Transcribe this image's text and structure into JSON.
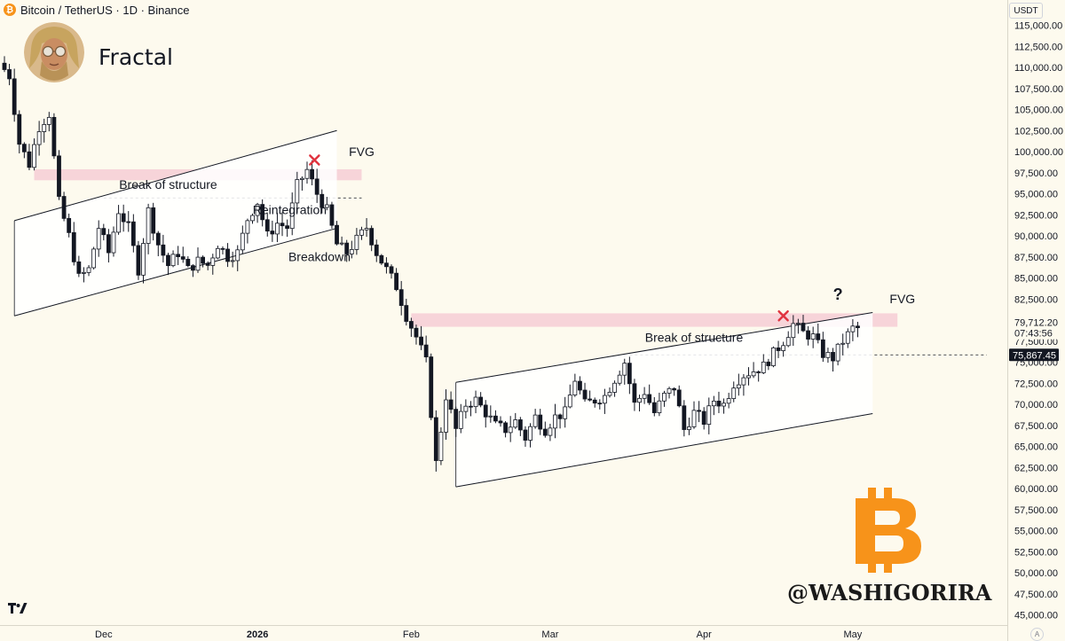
{
  "header": {
    "symbol_title": "Bitcoin / TetherUS · 1D · Binance",
    "coin_glyph": "₿"
  },
  "brand": {
    "title": "Fractal",
    "watermark": "@WASHIGORIRA",
    "logo_color": "#f7931a"
  },
  "toolbar": {
    "currency": "USDT",
    "scale_mode": "A"
  },
  "colors": {
    "background": "#fdfaee",
    "fvg_zone": "#f6cfd6",
    "marker": "#e0343f",
    "price_label_bg": "#131722"
  },
  "chart_data": {
    "type": "candlestick",
    "pair": "BTCUSDT",
    "timeframe": "1D",
    "exchange": "Binance",
    "y_axis": {
      "ylim": [
        44200,
        116400
      ],
      "ticks": [
        45000,
        47500,
        50000,
        52500,
        55000,
        57500,
        60000,
        62500,
        65000,
        67500,
        70000,
        72500,
        75000,
        77500,
        80000,
        82500,
        85000,
        87500,
        90000,
        92500,
        95000,
        97500,
        100000,
        102500,
        105000,
        107500,
        110000,
        112500,
        115000
      ],
      "tick_labels": [
        "45,000.00",
        "47,500.00",
        "50,000.00",
        "52,500.00",
        "55,000.00",
        "57,500.00",
        "60,000.00",
        "62,500.00",
        "65,000.00",
        "67,500.00",
        "70,000.00",
        "72,500.00",
        "75,000.00",
        "77,500.00",
        "80,000.00",
        "82,500.00",
        "85,000.00",
        "87,500.00",
        "90,000.00",
        "92,500.00",
        "95,000.00",
        "97,500.00",
        "100,000.00",
        "102,500.00",
        "105,000.00",
        "107,500.00",
        "110,000.00",
        "112,500.00",
        "115,000.00"
      ]
    },
    "x_axis": {
      "labels": [
        {
          "text": "Dec",
          "day": 20,
          "bold": false
        },
        {
          "text": "2026",
          "day": 51,
          "bold": true
        },
        {
          "text": "Feb",
          "day": 82,
          "bold": false
        },
        {
          "text": "Mar",
          "day": 110,
          "bold": false
        },
        {
          "text": "Apr",
          "day": 141,
          "bold": false
        },
        {
          "text": "May",
          "day": 171,
          "bold": false
        }
      ]
    },
    "price_labels": {
      "last_price": "79,712.20",
      "countdown": "07:43:56",
      "level": 75867.45,
      "level_label": "75,867.45"
    },
    "path_prices": [
      [
        0,
        110500
      ],
      [
        2,
        109000
      ],
      [
        4,
        101000
      ],
      [
        6,
        98500
      ],
      [
        8,
        103000
      ],
      [
        10,
        104500
      ],
      [
        12,
        94000
      ],
      [
        14,
        90000
      ],
      [
        16,
        85000
      ],
      [
        18,
        86000
      ],
      [
        20,
        91000
      ],
      [
        22,
        88000
      ],
      [
        24,
        93000
      ],
      [
        26,
        91000
      ],
      [
        28,
        86000
      ],
      [
        30,
        93000
      ],
      [
        32,
        89000
      ],
      [
        34,
        86500
      ],
      [
        36,
        88000
      ],
      [
        38,
        86000
      ],
      [
        40,
        87000
      ],
      [
        42,
        86500
      ],
      [
        44,
        89000
      ],
      [
        46,
        87500
      ],
      [
        48,
        88000
      ],
      [
        50,
        92000
      ],
      [
        52,
        94000
      ],
      [
        54,
        90000
      ],
      [
        56,
        91500
      ],
      [
        58,
        91000
      ],
      [
        60,
        96000
      ],
      [
        62,
        97800
      ],
      [
        64,
        95000
      ],
      [
        66,
        93000
      ],
      [
        68,
        89000
      ],
      [
        70,
        88000
      ],
      [
        72,
        89500
      ],
      [
        74,
        91000
      ],
      [
        76,
        88000
      ],
      [
        78,
        86000
      ],
      [
        80,
        84000
      ],
      [
        82,
        80500
      ],
      [
        84,
        78000
      ],
      [
        86,
        75000
      ],
      [
        88,
        63000
      ],
      [
        90,
        71000
      ],
      [
        92,
        67000
      ],
      [
        94,
        70000
      ],
      [
        96,
        70500
      ],
      [
        98,
        69000
      ],
      [
        100,
        67500
      ],
      [
        102,
        67000
      ],
      [
        104,
        68000
      ],
      [
        106,
        66000
      ],
      [
        108,
        68500
      ],
      [
        110,
        67000
      ],
      [
        112,
        68500
      ],
      [
        114,
        69000
      ],
      [
        116,
        73000
      ],
      [
        118,
        70000
      ],
      [
        120,
        70500
      ],
      [
        122,
        71000
      ],
      [
        124,
        73000
      ],
      [
        126,
        75000
      ],
      [
        128,
        70000
      ],
      [
        130,
        71500
      ],
      [
        132,
        69000
      ],
      [
        134,
        71000
      ],
      [
        136,
        72000
      ],
      [
        138,
        67000
      ],
      [
        140,
        69000
      ],
      [
        142,
        68000
      ],
      [
        144,
        70500
      ],
      [
        146,
        70000
      ],
      [
        148,
        72500
      ],
      [
        150,
        73500
      ],
      [
        152,
        74000
      ],
      [
        154,
        74500
      ],
      [
        156,
        76000
      ],
      [
        158,
        77500
      ],
      [
        160,
        79500
      ],
      [
        162,
        78500
      ],
      [
        164,
        78000
      ],
      [
        166,
        76000
      ],
      [
        168,
        75500
      ],
      [
        170,
        77500
      ],
      [
        172,
        79000
      ]
    ],
    "channels": [
      {
        "name": "upper-channel-1",
        "upper": [
          [
            2,
            91800
          ],
          [
            67,
            102500
          ]
        ],
        "lower": [
          [
            2,
            80500
          ],
          [
            67,
            90900
          ]
        ]
      },
      {
        "name": "upper-channel-2",
        "upper": [
          [
            91,
            72600
          ],
          [
            175,
            80900
          ]
        ],
        "lower": [
          [
            91,
            60200
          ],
          [
            175,
            68900
          ]
        ]
      }
    ],
    "fvg_zones": [
      {
        "label": "FVG",
        "price_low": 96600,
        "price_high": 97900,
        "day_start": 6,
        "day_end": 72
      },
      {
        "label": "FVG",
        "price_low": 79200,
        "price_high": 80800,
        "day_start": 82,
        "day_end": 180
      }
    ],
    "dashed_levels": [
      {
        "price": 94500,
        "day_start": 20,
        "day_end": 72
      },
      {
        "price": 75867.45,
        "day_start": 126,
        "day_end": 198
      }
    ],
    "annotations": [
      {
        "text": "Break of structure",
        "day": 33,
        "price": 95600
      },
      {
        "text": "Reintegration",
        "day": 57.5,
        "price": 92600
      },
      {
        "text": "Breakdown",
        "day": 63.5,
        "price": 87000
      },
      {
        "text": "Break of structure",
        "day": 139,
        "price": 77400
      },
      {
        "text": "FVG",
        "day": 72,
        "price": 99500
      },
      {
        "text": "FVG",
        "day": 181,
        "price": 82000
      },
      {
        "text": "?",
        "day": 168,
        "price": 82400
      }
    ],
    "markers": [
      {
        "type": "cross",
        "day": 62.5,
        "price": 99000
      },
      {
        "type": "cross",
        "day": 157,
        "price": 80500
      }
    ]
  }
}
